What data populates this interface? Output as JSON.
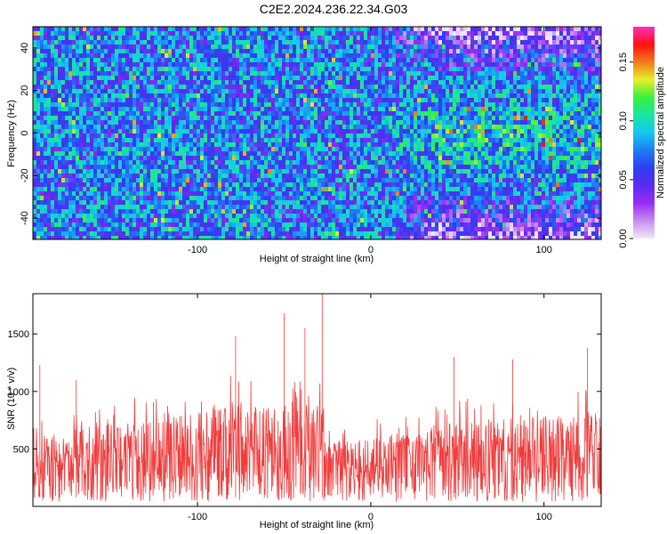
{
  "title": "C2E2.2024.236.22.34.G03",
  "colors": {
    "snr_line": "#f03c3c",
    "colormap": [
      "#f2e6f7",
      "#c58ff0",
      "#9a2cf5",
      "#5a2cf0",
      "#2d3ef0",
      "#1f7cf5",
      "#14c8f0",
      "#18e6a0",
      "#3cf03c",
      "#e6f02a",
      "#f07a1e",
      "#ff1010",
      "#ff2fbf"
    ]
  },
  "chart_data": [
    {
      "type": "heatmap",
      "xlabel": "Height of straight line (km)",
      "ylabel": "Frequency (Hz)",
      "xlim": [
        -195,
        133
      ],
      "ylim": [
        -50,
        50
      ],
      "x_ticks": [
        -100,
        0,
        100
      ],
      "x_tick_labels": [
        "-100",
        "0",
        "100"
      ],
      "y_ticks": [
        -40,
        -20,
        0,
        20,
        40
      ],
      "y_tick_labels": [
        "-40",
        "-20",
        "0",
        "20",
        "40"
      ],
      "colorbar": {
        "label": "Normalized spectral amplitude",
        "range": [
          0,
          0.18
        ],
        "ticks": [
          0,
          0.05,
          0.1,
          0.15
        ],
        "tick_labels": [
          "0.00",
          "0.05",
          "0.10",
          "0.15"
        ]
      }
    },
    {
      "type": "line",
      "xlabel": "Height of straight line (km)",
      "ylabel": "SNR (10 * v/v)",
      "xlim": [
        -195,
        133
      ],
      "ylim": [
        0,
        1850
      ],
      "x_ticks": [
        -100,
        0,
        100
      ],
      "x_tick_labels": [
        "-100",
        "0",
        "100"
      ],
      "y_ticks": [
        500,
        1000,
        1500
      ],
      "y_tick_labels": [
        "500",
        "1000",
        "1500"
      ],
      "envelope_x": [
        -195,
        -180,
        -160,
        -140,
        -120,
        -100,
        -80,
        -60,
        -40,
        -30,
        -20,
        -10,
        0,
        20,
        40,
        60,
        80,
        100,
        120,
        133
      ],
      "envelope_y": [
        650,
        700,
        800,
        820,
        850,
        950,
        1000,
        980,
        1000,
        1000,
        620,
        620,
        650,
        720,
        800,
        820,
        850,
        880,
        900,
        900
      ],
      "peaks": [
        {
          "x": -191,
          "y": 1230
        },
        {
          "x": -170,
          "y": 1100
        },
        {
          "x": -78,
          "y": 1480
        },
        {
          "x": -50,
          "y": 1680
        },
        {
          "x": -38,
          "y": 1550
        },
        {
          "x": -28,
          "y": 1850
        },
        {
          "x": 48,
          "y": 1300
        },
        {
          "x": 82,
          "y": 1280
        },
        {
          "x": 125,
          "y": 1380
        }
      ]
    }
  ]
}
